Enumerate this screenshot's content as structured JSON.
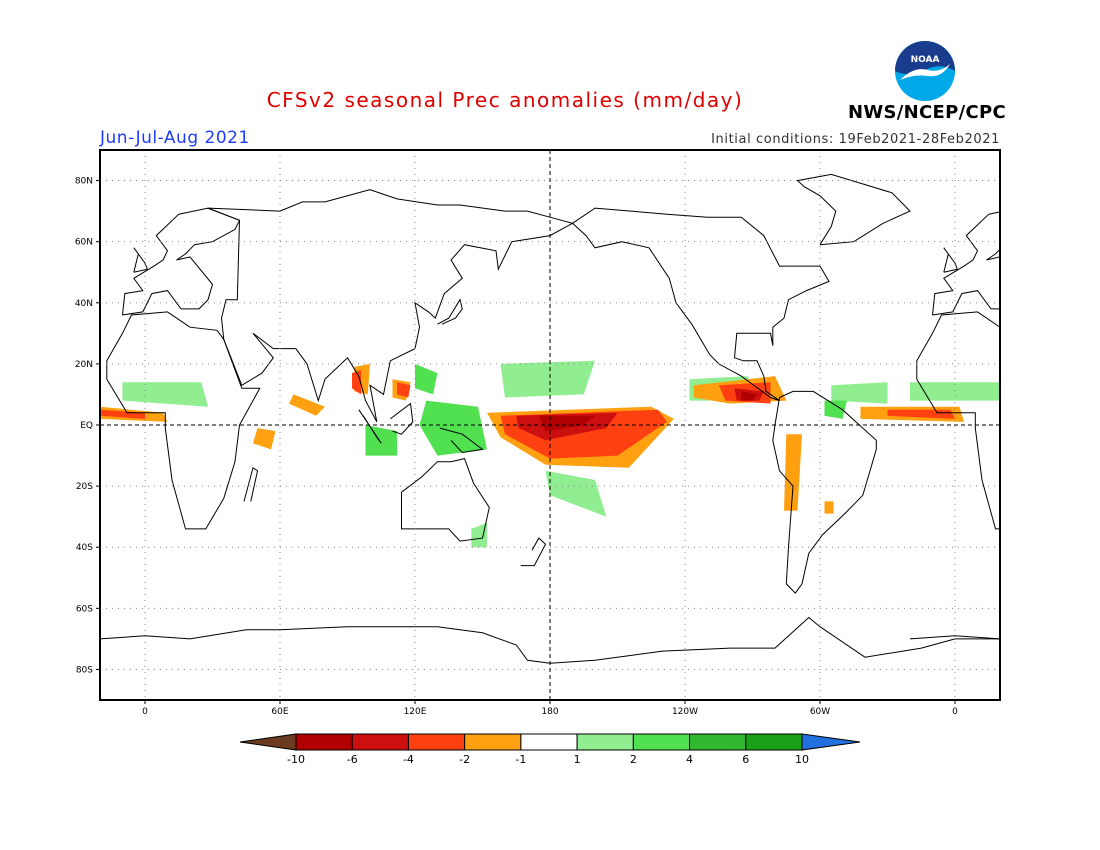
{
  "title": "CFSv2 seasonal Prec anomalies (mm/day)",
  "season": "Jun-Jul-Aug 2021",
  "init_conditions": "Initial conditions: 19Feb2021-28Feb2021",
  "agency": "NWS/NCEP/CPC",
  "logo_text": "NOAA",
  "logo_colors": {
    "outer": "#00a8e8",
    "inner": "#1a3c8c",
    "bird": "#ffffff"
  },
  "map": {
    "lat_ticks": [
      "80N",
      "60N",
      "40N",
      "20N",
      "EQ",
      "20S",
      "40S",
      "60S",
      "80S"
    ],
    "lon_ticks": [
      "0",
      "60E",
      "120E",
      "180",
      "120W",
      "60W",
      "0"
    ],
    "lat_values": [
      80,
      60,
      40,
      20,
      0,
      -20,
      -40,
      -60,
      -80
    ],
    "lon_values": [
      0,
      60,
      120,
      180,
      240,
      300,
      360
    ],
    "lon_range": [
      -20,
      380
    ],
    "lat_range": [
      -90,
      90
    ],
    "grid": true
  },
  "colorbar": {
    "labels": [
      "-10",
      "-6",
      "-4",
      "-2",
      "-1",
      "1",
      "2",
      "4",
      "6",
      "10"
    ],
    "colors": [
      "#6b3a1f",
      "#b00000",
      "#cc1010",
      "#ff4010",
      "#ffa010",
      "#ffffff",
      "#90ee90",
      "#50e050",
      "#30b830",
      "#18a018",
      "#2070e0"
    ]
  },
  "anomaly_colors": {
    "wet_light": "#90ee90",
    "wet_mid": "#50e050",
    "dry_light": "#ffa010",
    "dry_mid": "#ff4010",
    "dry_strong": "#cc1010",
    "dry_extreme": "#b00000"
  }
}
